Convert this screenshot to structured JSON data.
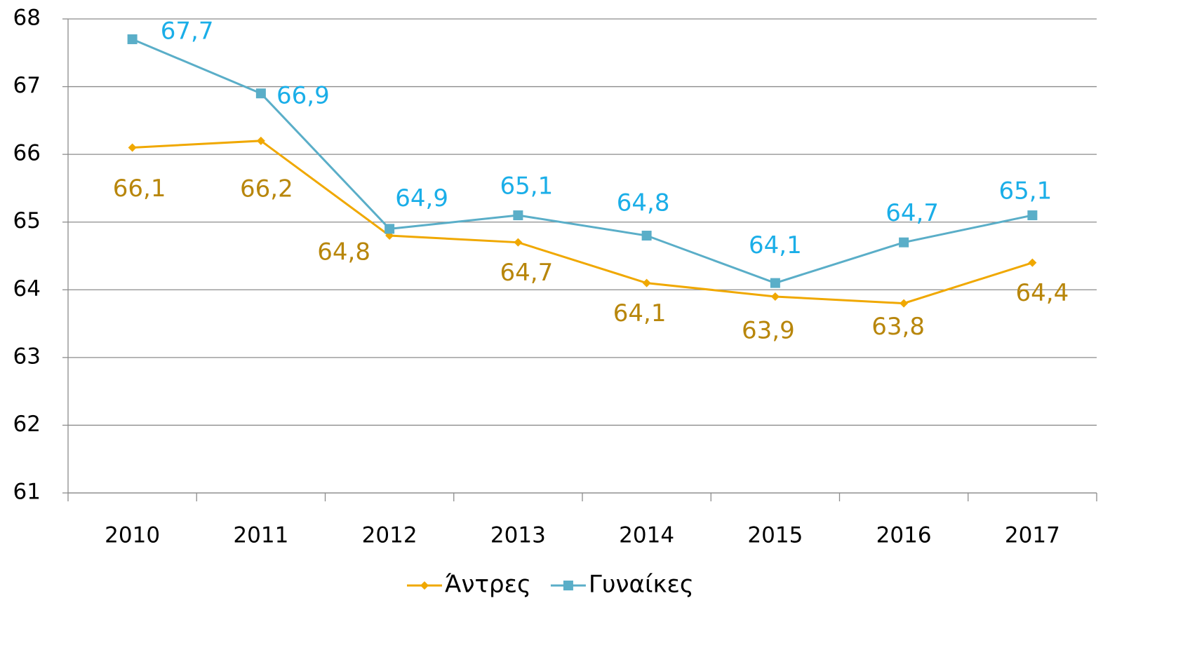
{
  "chart_data": {
    "type": "line",
    "categories": [
      "2010",
      "2011",
      "2012",
      "2013",
      "2014",
      "2015",
      "2016",
      "2017"
    ],
    "series": [
      {
        "name": "Άντρες",
        "color": "#f0a800",
        "label_color": "#b8860b",
        "marker": "diamond",
        "values": [
          66.1,
          66.2,
          64.8,
          64.7,
          64.1,
          63.9,
          63.8,
          64.4
        ],
        "value_labels": [
          "66,1",
          "66,2",
          "64,8",
          "64,7",
          "64,1",
          "63,9",
          "63,8",
          "64,4"
        ]
      },
      {
        "name": "Γυναίκες",
        "color": "#5aaec8",
        "label_color": "#1aaee8",
        "marker": "square",
        "values": [
          67.7,
          66.9,
          64.9,
          65.1,
          64.8,
          64.1,
          64.7,
          65.1
        ],
        "value_labels": [
          "67,7",
          "66,9",
          "64,9",
          "65,1",
          "64,8",
          "64,1",
          "64,7",
          "65,1"
        ]
      }
    ],
    "ylim": [
      61,
      68
    ],
    "yticks": [
      61,
      62,
      63,
      64,
      65,
      66,
      67,
      68
    ],
    "grid": true,
    "legend": "bottom"
  }
}
